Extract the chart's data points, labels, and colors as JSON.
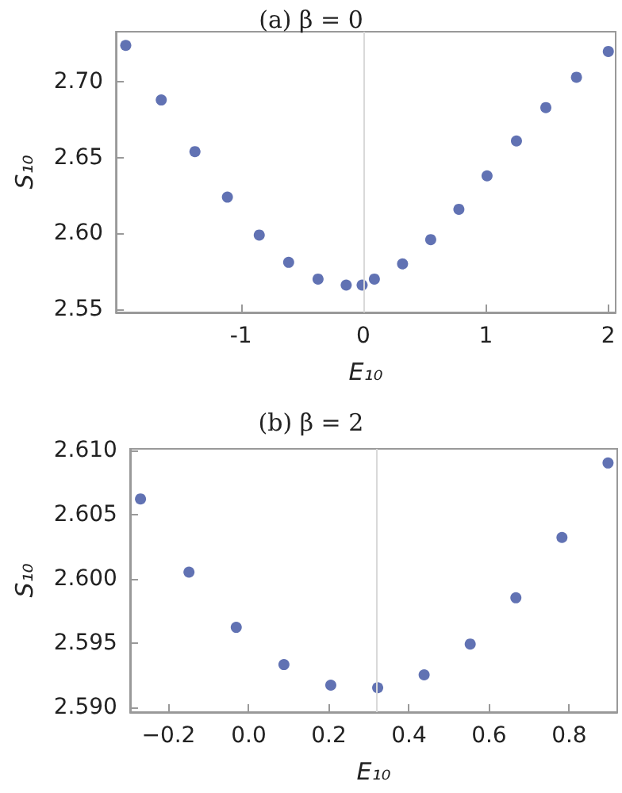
{
  "chart_data": [
    {
      "type": "scatter",
      "title": "(a) β = 0",
      "xlabel": "E₁₀",
      "ylabel": "S₁₀",
      "marker": "circle",
      "grid": false,
      "xlim": [
        -2.02,
        2.06
      ],
      "ylim": [
        2.548,
        2.733
      ],
      "xticks": [
        -1,
        0,
        1,
        2
      ],
      "yticks": [
        {
          "value": 2.55,
          "label": "2.55"
        },
        {
          "value": 2.6,
          "label": "2.60"
        },
        {
          "value": 2.65,
          "label": "2.65"
        },
        {
          "value": 2.7,
          "label": "2.70"
        }
      ],
      "ref_lines": [
        {
          "axis": "x",
          "value": 0,
          "color": "#d9d9d9"
        }
      ],
      "series": [
        {
          "color": "#3a4fa0",
          "x": [
            -1.94,
            -1.65,
            -1.375,
            -1.11,
            -0.85,
            -0.61,
            -0.37,
            -0.14,
            -0.01,
            0.09,
            0.32,
            0.55,
            0.78,
            1.01,
            1.25,
            1.49,
            1.74,
            2.0
          ],
          "values": [
            2.724,
            2.688,
            2.654,
            2.624,
            2.599,
            2.581,
            2.57,
            2.566,
            2.566,
            2.57,
            2.58,
            2.596,
            2.616,
            2.638,
            2.661,
            2.683,
            2.703,
            2.72
          ]
        }
      ]
    },
    {
      "type": "scatter",
      "title": "(b) β = 2",
      "xlabel": "E₁₀",
      "ylabel": "S₁₀",
      "marker": "circle",
      "grid": false,
      "xlim": [
        -0.296,
        0.92
      ],
      "ylim": [
        2.5896,
        2.6101
      ],
      "xticks": [
        {
          "value": -0.2,
          "label": "−0.2"
        },
        {
          "value": 0,
          "label": "0.0"
        },
        {
          "value": 0.2,
          "label": "0.2"
        },
        {
          "value": 0.4,
          "label": "0.4"
        },
        {
          "value": 0.6,
          "label": "0.6"
        },
        {
          "value": 0.8,
          "label": "0.8"
        }
      ],
      "yticks": [
        {
          "value": 2.59,
          "label": "2.590"
        },
        {
          "value": 2.595,
          "label": "2.595"
        },
        {
          "value": 2.6,
          "label": "2.600"
        },
        {
          "value": 2.605,
          "label": "2.605"
        },
        {
          "value": 2.61,
          "label": "2.610"
        }
      ],
      "ref_lines": [
        {
          "axis": "x",
          "value": 0.32,
          "color": "#d9d9d9"
        }
      ],
      "series": [
        {
          "color": "#3a4fa0",
          "x": [
            -0.27,
            -0.149,
            -0.031,
            0.088,
            0.205,
            0.322,
            0.438,
            0.553,
            0.667,
            0.782,
            0.897
          ],
          "values": [
            2.6062,
            2.6005,
            2.5962,
            2.5933,
            2.5917,
            2.5915,
            2.5925,
            2.5949,
            2.5985,
            2.6032,
            2.609
          ]
        }
      ]
    }
  ]
}
